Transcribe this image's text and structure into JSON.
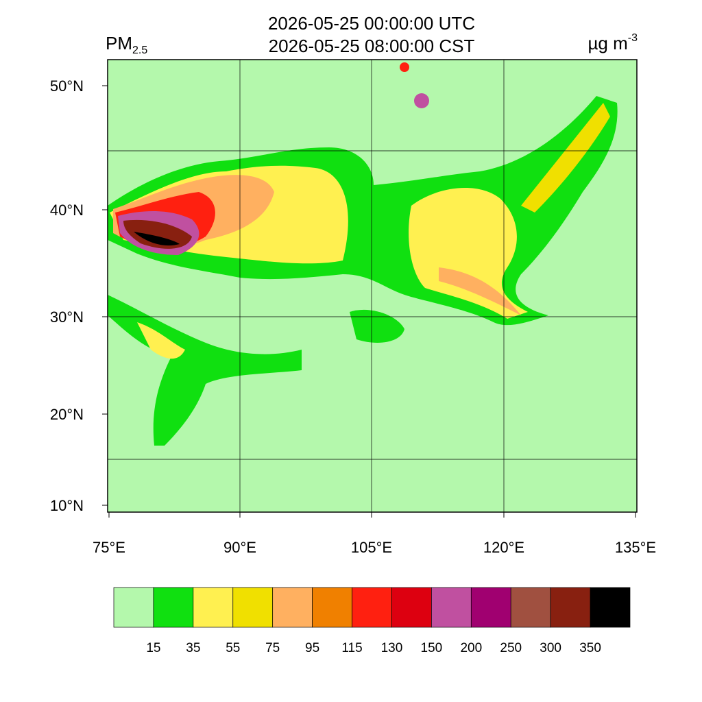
{
  "header": {
    "title_utc": "2026-05-25 00:00:00 UTC",
    "title_cst": "2026-05-25 08:00:00 CST",
    "variable": "PM",
    "variable_sub": "2.5",
    "units": "µg m",
    "units_sup": "-3"
  },
  "map": {
    "lat_labels": [
      "50°N",
      "40°N",
      "30°N",
      "20°N",
      "10°N"
    ],
    "lon_labels": [
      "75°E",
      "90°E",
      "105°E",
      "120°E",
      "135°E"
    ]
  },
  "colorbar": {
    "labels": [
      "15",
      "35",
      "55",
      "75",
      "95",
      "115",
      "130",
      "150",
      "200",
      "250",
      "300",
      "350"
    ],
    "colors": [
      "#b4f8ac",
      "#10e010",
      "#fff050",
      "#f0e000",
      "#ffb060",
      "#f08000",
      "#ff2010",
      "#dd0010",
      "#c050a0",
      "#a00070",
      "#a05040",
      "#882010",
      "#000000"
    ]
  }
}
